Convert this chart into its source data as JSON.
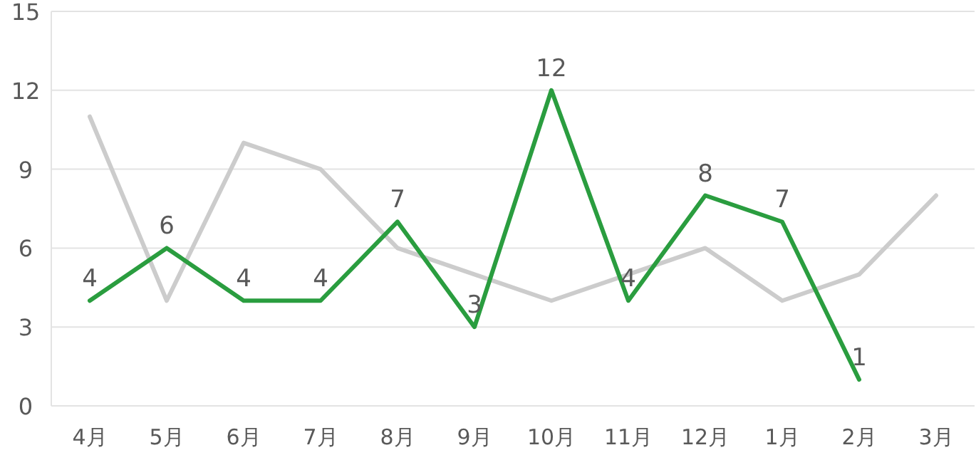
{
  "chart_data": {
    "type": "line",
    "categories": [
      "4月",
      "5月",
      "6月",
      "7月",
      "8月",
      "9月",
      "10月",
      "11月",
      "12月",
      "1月",
      "2月",
      "3月"
    ],
    "series": [
      {
        "color": "#cccccc",
        "values": [
          11,
          4,
          10,
          9,
          6,
          5,
          4,
          5,
          6,
          4,
          5,
          8
        ]
      },
      {
        "color": "#2a9d3f",
        "values": [
          4,
          6,
          4,
          4,
          7,
          3,
          12,
          4,
          8,
          7,
          1,
          null
        ],
        "value_labels": [
          "4",
          "6",
          "4",
          "4",
          "7",
          "3",
          "12",
          "4",
          "8",
          "7",
          "1",
          null
        ]
      }
    ],
    "ylim": [
      0,
      15
    ],
    "yticks": [
      0,
      3,
      6,
      9,
      12,
      15
    ],
    "grid": "y",
    "marker": "none",
    "line_style": "solid"
  }
}
